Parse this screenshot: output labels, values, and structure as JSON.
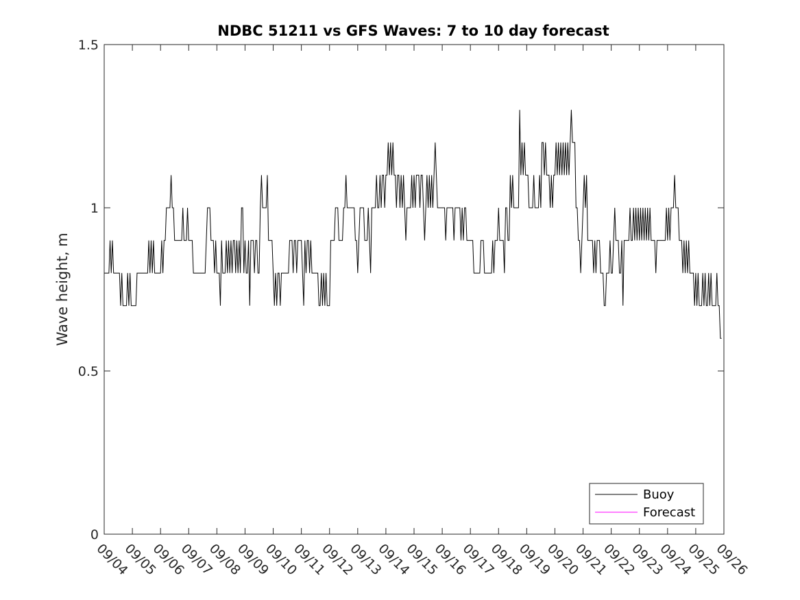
{
  "chart_data": {
    "type": "line",
    "title": "NDBC 51211 vs GFS Waves: 7 to 10 day forecast",
    "xlabel": "",
    "ylabel": "Wave height, m",
    "ylim": [
      0,
      1.5
    ],
    "xlim_days": [
      0,
      22
    ],
    "yticks": [
      0,
      0.5,
      1,
      1.5
    ],
    "ytick_labels": [
      "0",
      "0.5",
      "1",
      "1.5"
    ],
    "xtick_labels": [
      "09/04",
      "09/05",
      "09/06",
      "09/07",
      "09/08",
      "09/09",
      "09/10",
      "09/11",
      "09/12",
      "09/13",
      "09/14",
      "09/15",
      "09/16",
      "09/17",
      "09/18",
      "09/19",
      "09/20",
      "09/21",
      "09/22",
      "09/23",
      "09/24",
      "09/25",
      "09/26"
    ],
    "grid": false,
    "legend": {
      "placement": "bottom-right",
      "entries": [
        "Buoy",
        "Forecast"
      ]
    },
    "series": [
      {
        "name": "Buoy",
        "color": "#000000",
        "x_start_day": 0,
        "step_day": 0.0416667,
        "values": [
          0.8,
          0.8,
          0.8,
          0.8,
          0.8,
          0.9,
          0.8,
          0.9,
          0.8,
          0.8,
          0.8,
          0.8,
          0.8,
          0.8,
          0.7,
          0.8,
          0.7,
          0.7,
          0.7,
          0.7,
          0.8,
          0.7,
          0.8,
          0.7,
          0.7,
          0.7,
          0.7,
          0.7,
          0.8,
          0.8,
          0.8,
          0.8,
          0.8,
          0.8,
          0.8,
          0.8,
          0.8,
          0.8,
          0.9,
          0.8,
          0.9,
          0.8,
          0.9,
          0.8,
          0.8,
          0.8,
          0.8,
          0.8,
          0.8,
          0.9,
          0.8,
          0.9,
          0.9,
          1.0,
          1.0,
          1.0,
          1.0,
          1.1,
          1.0,
          1.0,
          0.9,
          0.9,
          0.9,
          0.9,
          0.9,
          0.9,
          0.9,
          1.0,
          0.9,
          0.9,
          0.9,
          1.0,
          0.9,
          0.9,
          0.9,
          0.9,
          0.8,
          0.8,
          0.8,
          0.8,
          0.8,
          0.8,
          0.8,
          0.8,
          0.8,
          0.8,
          0.8,
          0.9,
          1.0,
          1.0,
          1.0,
          0.9,
          0.9,
          0.9,
          0.8,
          0.9,
          0.8,
          0.8,
          0.8,
          0.7,
          0.9,
          0.8,
          0.8,
          0.8,
          0.9,
          0.8,
          0.9,
          0.8,
          0.9,
          0.8,
          0.9,
          0.9,
          0.8,
          0.9,
          0.8,
          0.9,
          0.8,
          1.0,
          1.0,
          0.8,
          0.9,
          0.8,
          0.8,
          0.9,
          0.7,
          0.9,
          0.9,
          0.9,
          0.8,
          0.9,
          0.9,
          0.8,
          0.8,
          1.0,
          1.1,
          1.0,
          1.0,
          1.0,
          1.0,
          1.1,
          0.9,
          0.9,
          0.9,
          0.9,
          0.8,
          0.7,
          0.8,
          0.7,
          0.8,
          0.8,
          0.7,
          0.8,
          0.8,
          0.8,
          0.8,
          0.8,
          0.8,
          0.8,
          0.9,
          0.9,
          0.9,
          0.8,
          0.9,
          0.9,
          0.8,
          0.9,
          0.9,
          0.9,
          0.9,
          0.8,
          0.7,
          0.9,
          0.8,
          0.9,
          0.9,
          0.8,
          0.9,
          0.8,
          0.8,
          0.8,
          0.8,
          0.8,
          0.8,
          0.7,
          0.7,
          0.8,
          0.7,
          0.8,
          0.7,
          0.8,
          0.7,
          0.7,
          0.7,
          0.9,
          0.9,
          0.9,
          0.9,
          1.0,
          1.0,
          1.0,
          0.9,
          0.9,
          0.9,
          0.9,
          1.0,
          1.0,
          1.1,
          1.0,
          1.0,
          1.0,
          1.0,
          1.0,
          1.0,
          1.0,
          0.9,
          0.9,
          0.8,
          0.9,
          1.0,
          1.0,
          1.0,
          1.0,
          0.9,
          0.9,
          0.9,
          1.0,
          0.9,
          0.8,
          1.0,
          1.0,
          1.0,
          1.0,
          1.1,
          1.0,
          1.0,
          1.1,
          1.0,
          1.1,
          1.1,
          1.0,
          1.1,
          1.1,
          1.2,
          1.1,
          1.2,
          1.1,
          1.2,
          1.1,
          1.1,
          1.0,
          1.1,
          1.1,
          1.0,
          1.1,
          1.0,
          1.1,
          1.0,
          0.9,
          1.0,
          1.0,
          1.0,
          1.0,
          1.1,
          1.0,
          1.1,
          1.0,
          1.1,
          1.1,
          1.1,
          1.0,
          1.1,
          1.1,
          1.0,
          0.9,
          1.0,
          1.1,
          1.0,
          1.1,
          1.0,
          1.1,
          1.0,
          1.1,
          1.2,
          1.1,
          1.0,
          1.0,
          1.0,
          1.0,
          1.0,
          1.0,
          1.0,
          0.9,
          1.0,
          1.0,
          1.0,
          1.0,
          1.0,
          1.0,
          0.9,
          1.0,
          1.0,
          1.0,
          1.0,
          1.0,
          0.9,
          1.0,
          0.9,
          1.0,
          1.0,
          0.9,
          0.9,
          0.9,
          0.9,
          0.9,
          0.9,
          0.8,
          0.8,
          0.8,
          0.8,
          0.8,
          0.8,
          0.9,
          0.9,
          0.9,
          0.8,
          0.8,
          0.8,
          0.8,
          0.8,
          0.8,
          0.8,
          0.9,
          0.8,
          0.9,
          0.9,
          0.9,
          1.0,
          0.9,
          0.9,
          0.9,
          0.9,
          0.8,
          1.0,
          1.0,
          0.9,
          0.9,
          1.1,
          1.0,
          1.1,
          1.0,
          1.0,
          1.0,
          1.0,
          1.0,
          1.3,
          1.1,
          1.2,
          1.1,
          1.2,
          1.1,
          1.1,
          1.1,
          1.0,
          1.0,
          1.0,
          1.0,
          1.1,
          1.0,
          1.0,
          1.0,
          1.0,
          1.1,
          1.0,
          1.2,
          1.2,
          1.1,
          1.2,
          1.1,
          1.1,
          1.1,
          1.0,
          1.1,
          1.0,
          1.1,
          1.1,
          1.2,
          1.1,
          1.2,
          1.1,
          1.2,
          1.1,
          1.2,
          1.1,
          1.2,
          1.1,
          1.2,
          1.1,
          1.2,
          1.3,
          1.2,
          1.2,
          1.2,
          1.0,
          1.0,
          0.9,
          0.9,
          0.8,
          0.9,
          1.0,
          1.1,
          1.0,
          1.1,
          0.9,
          0.9,
          0.9,
          0.9,
          0.9,
          0.8,
          0.9,
          0.8,
          0.9,
          0.9,
          0.9,
          0.8,
          0.8,
          0.8,
          0.7,
          0.7,
          0.8,
          0.8,
          0.8,
          0.9,
          0.8,
          0.8,
          0.9,
          1.0,
          0.9,
          0.9,
          0.9,
          0.8,
          0.8,
          0.9,
          0.7,
          0.9,
          0.9,
          0.9,
          0.9,
          0.9,
          1.0,
          0.9,
          0.9,
          1.0,
          0.9,
          1.0,
          0.9,
          1.0,
          0.9,
          1.0,
          0.9,
          1.0,
          0.9,
          1.0,
          0.9,
          1.0,
          0.9,
          1.0,
          0.9,
          0.9,
          0.9,
          0.9,
          0.8,
          0.9,
          0.9,
          0.9,
          0.9,
          0.9,
          0.9,
          0.9,
          0.9,
          1.0,
          0.9,
          1.0,
          0.9,
          1.0,
          1.0,
          1.0,
          1.1,
          1.0,
          1.0,
          1.0,
          0.9,
          0.9,
          0.9,
          0.8,
          0.9,
          0.8,
          0.9,
          0.8,
          0.9,
          0.8,
          0.8,
          0.8,
          0.8,
          0.7,
          0.8,
          0.7,
          0.8,
          0.7,
          0.7,
          0.7,
          0.8,
          0.7,
          0.8,
          0.7,
          0.7,
          0.8,
          0.7,
          0.8,
          0.7,
          0.7,
          0.7,
          0.7,
          0.8,
          0.7,
          0.7,
          0.6,
          0.6
        ]
      },
      {
        "name": "Forecast",
        "color": "#ff00ff",
        "values": []
      }
    ]
  }
}
